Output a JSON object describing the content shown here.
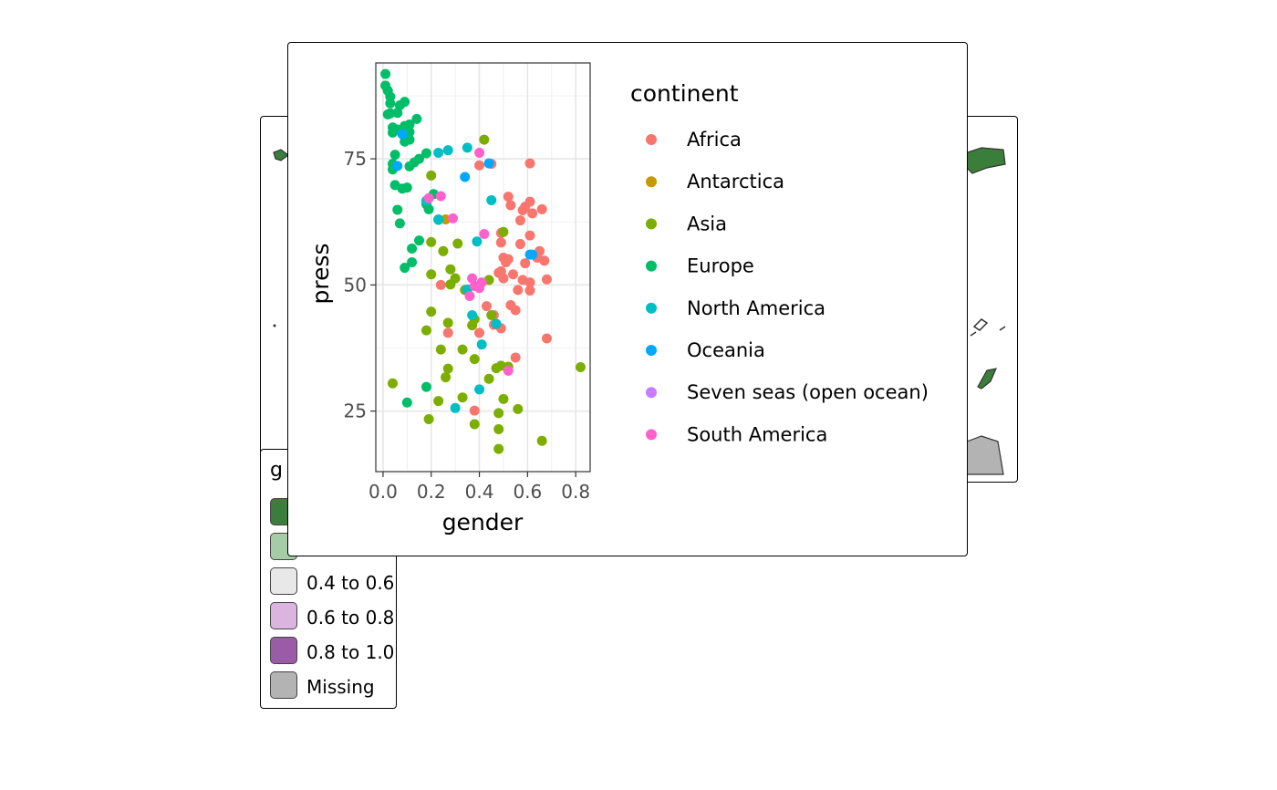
{
  "map": {
    "legend_title": "g",
    "legend_items": [
      {
        "label": "",
        "color": "#3b7d3b"
      },
      {
        "label": "",
        "color": "#a6cca6"
      },
      {
        "label": "0.4 to 0.6",
        "color": "#e8e8e8"
      },
      {
        "label": "0.6 to 0.8",
        "color": "#dcb4e0"
      },
      {
        "label": "0.8 to 1.0",
        "color": "#9a5ca6"
      },
      {
        "label": "Missing",
        "color": "#b3b3b3"
      }
    ]
  },
  "chart_data": {
    "type": "scatter",
    "xlabel": "gender",
    "ylabel": "press",
    "xlim": [
      -0.03,
      0.86
    ],
    "ylim": [
      13,
      94
    ],
    "xticks": [
      0.0,
      0.2,
      0.4,
      0.6,
      0.8
    ],
    "xtick_labels": [
      "0.0",
      "0.2",
      "0.4",
      "0.6",
      "0.8"
    ],
    "yticks": [
      25,
      50,
      75
    ],
    "ytick_labels": [
      "25",
      "50",
      "75"
    ],
    "grid": true,
    "legend_title": "continent",
    "legend_position": "right",
    "series": [
      {
        "name": "Africa",
        "color": "#F8766D",
        "points": [
          [
            0.4,
            73.7
          ],
          [
            0.45,
            74.0
          ],
          [
            0.61,
            74.1
          ],
          [
            0.52,
            67.5
          ],
          [
            0.53,
            65.8
          ],
          [
            0.61,
            66.5
          ],
          [
            0.58,
            64.8
          ],
          [
            0.59,
            65.5
          ],
          [
            0.66,
            65.0
          ],
          [
            0.62,
            64.2
          ],
          [
            0.57,
            62.8
          ],
          [
            0.49,
            60.3
          ],
          [
            0.61,
            59.8
          ],
          [
            0.49,
            58.4
          ],
          [
            0.57,
            58.1
          ],
          [
            0.65,
            56.7
          ],
          [
            0.64,
            55.4
          ],
          [
            0.5,
            55.4
          ],
          [
            0.52,
            55.1
          ],
          [
            0.67,
            54.8
          ],
          [
            0.51,
            54.5
          ],
          [
            0.59,
            54.3
          ],
          [
            0.49,
            52.7
          ],
          [
            0.48,
            52.4
          ],
          [
            0.54,
            52.1
          ],
          [
            0.5,
            51.3
          ],
          [
            0.58,
            51.0
          ],
          [
            0.61,
            50.5
          ],
          [
            0.68,
            51.1
          ],
          [
            0.56,
            49.0
          ],
          [
            0.61,
            48.9
          ],
          [
            0.24,
            50.0
          ],
          [
            0.43,
            45.8
          ],
          [
            0.53,
            46.0
          ],
          [
            0.55,
            45.0
          ],
          [
            0.46,
            44.0
          ],
          [
            0.46,
            42.1
          ],
          [
            0.49,
            41.4
          ],
          [
            0.4,
            40.5
          ],
          [
            0.27,
            40.5
          ],
          [
            0.68,
            39.4
          ],
          [
            0.55,
            35.6
          ],
          [
            0.38,
            25.1
          ]
        ]
      },
      {
        "name": "Antarctica",
        "color": "#C49A00",
        "points": [
          [
            0.26,
            63.0
          ]
        ]
      },
      {
        "name": "Asia",
        "color": "#7CAE00",
        "points": [
          [
            0.42,
            78.8
          ],
          [
            0.2,
            71.7
          ],
          [
            0.5,
            60.5
          ],
          [
            0.2,
            58.5
          ],
          [
            0.31,
            58.2
          ],
          [
            0.25,
            56.7
          ],
          [
            0.28,
            53.1
          ],
          [
            0.2,
            52.1
          ],
          [
            0.3,
            51.3
          ],
          [
            0.28,
            50.1
          ],
          [
            0.44,
            51.0
          ],
          [
            0.34,
            49.0
          ],
          [
            0.2,
            44.7
          ],
          [
            0.38,
            43.2
          ],
          [
            0.27,
            42.5
          ],
          [
            0.37,
            42.0
          ],
          [
            0.18,
            41.0
          ],
          [
            0.45,
            44.0
          ],
          [
            0.24,
            37.2
          ],
          [
            0.33,
            37.2
          ],
          [
            0.38,
            35.3
          ],
          [
            0.47,
            33.5
          ],
          [
            0.49,
            34.0
          ],
          [
            0.52,
            33.8
          ],
          [
            0.27,
            33.4
          ],
          [
            0.26,
            31.7
          ],
          [
            0.44,
            31.4
          ],
          [
            0.04,
            30.5
          ],
          [
            0.33,
            27.7
          ],
          [
            0.23,
            27.0
          ],
          [
            0.5,
            27.4
          ],
          [
            0.48,
            24.6
          ],
          [
            0.56,
            25.4
          ],
          [
            0.19,
            23.4
          ],
          [
            0.38,
            22.4
          ],
          [
            0.48,
            21.4
          ],
          [
            0.66,
            19.1
          ],
          [
            0.48,
            17.5
          ],
          [
            0.82,
            33.7
          ]
        ]
      },
      {
        "name": "Europe",
        "color": "#00BE67",
        "points": [
          [
            0.01,
            91.8
          ],
          [
            0.01,
            89.5
          ],
          [
            0.02,
            88.5
          ],
          [
            0.03,
            87.3
          ],
          [
            0.03,
            86.0
          ],
          [
            0.09,
            86.3
          ],
          [
            0.07,
            85.6
          ],
          [
            0.06,
            84.1
          ],
          [
            0.03,
            84.0
          ],
          [
            0.02,
            83.8
          ],
          [
            0.14,
            82.9
          ],
          [
            0.09,
            81.5
          ],
          [
            0.11,
            81.8
          ],
          [
            0.06,
            80.8
          ],
          [
            0.04,
            81.2
          ],
          [
            0.04,
            80.2
          ],
          [
            0.11,
            80.3
          ],
          [
            0.09,
            78.4
          ],
          [
            0.11,
            78.8
          ],
          [
            0.18,
            76.1
          ],
          [
            0.05,
            75.8
          ],
          [
            0.15,
            75.0
          ],
          [
            0.13,
            74.3
          ],
          [
            0.11,
            73.5
          ],
          [
            0.04,
            74.0
          ],
          [
            0.04,
            72.9
          ],
          [
            0.05,
            69.8
          ],
          [
            0.08,
            69.1
          ],
          [
            0.1,
            69.3
          ],
          [
            0.21,
            68.0
          ],
          [
            0.18,
            66.0
          ],
          [
            0.19,
            65.0
          ],
          [
            0.06,
            64.9
          ],
          [
            0.07,
            62.2
          ],
          [
            0.23,
            62.9
          ],
          [
            0.15,
            58.8
          ],
          [
            0.12,
            57.2
          ],
          [
            0.09,
            53.4
          ],
          [
            0.12,
            54.5
          ],
          [
            0.18,
            29.8
          ],
          [
            0.1,
            26.7
          ]
        ]
      },
      {
        "name": "North America",
        "color": "#00BFC4",
        "points": [
          [
            0.35,
            77.2
          ],
          [
            0.27,
            76.7
          ],
          [
            0.23,
            76.2
          ],
          [
            0.45,
            66.8
          ],
          [
            0.18,
            66.7
          ],
          [
            0.23,
            63.0
          ],
          [
            0.39,
            58.6
          ],
          [
            0.35,
            49.1
          ],
          [
            0.37,
            44.0
          ],
          [
            0.47,
            42.3
          ],
          [
            0.41,
            38.2
          ],
          [
            0.4,
            29.3
          ],
          [
            0.3,
            25.6
          ]
        ]
      },
      {
        "name": "Oceania",
        "color": "#00A9FF",
        "points": [
          [
            0.06,
            73.6
          ],
          [
            0.08,
            79.9
          ],
          [
            0.34,
            71.4
          ],
          [
            0.44,
            74.1
          ],
          [
            0.61,
            56.0
          ],
          [
            0.62,
            56.0
          ]
        ]
      },
      {
        "name": "Seven seas (open ocean)",
        "color": "#C77CFF",
        "points": []
      },
      {
        "name": "South America",
        "color": "#FF61CC",
        "points": [
          [
            0.4,
            76.2
          ],
          [
            0.19,
            67.2
          ],
          [
            0.24,
            67.6
          ],
          [
            0.29,
            63.2
          ],
          [
            0.42,
            60.1
          ],
          [
            0.37,
            51.3
          ],
          [
            0.41,
            50.5
          ],
          [
            0.38,
            49.8
          ],
          [
            0.4,
            49.4
          ],
          [
            0.36,
            47.8
          ],
          [
            0.52,
            33.0
          ]
        ]
      }
    ]
  }
}
